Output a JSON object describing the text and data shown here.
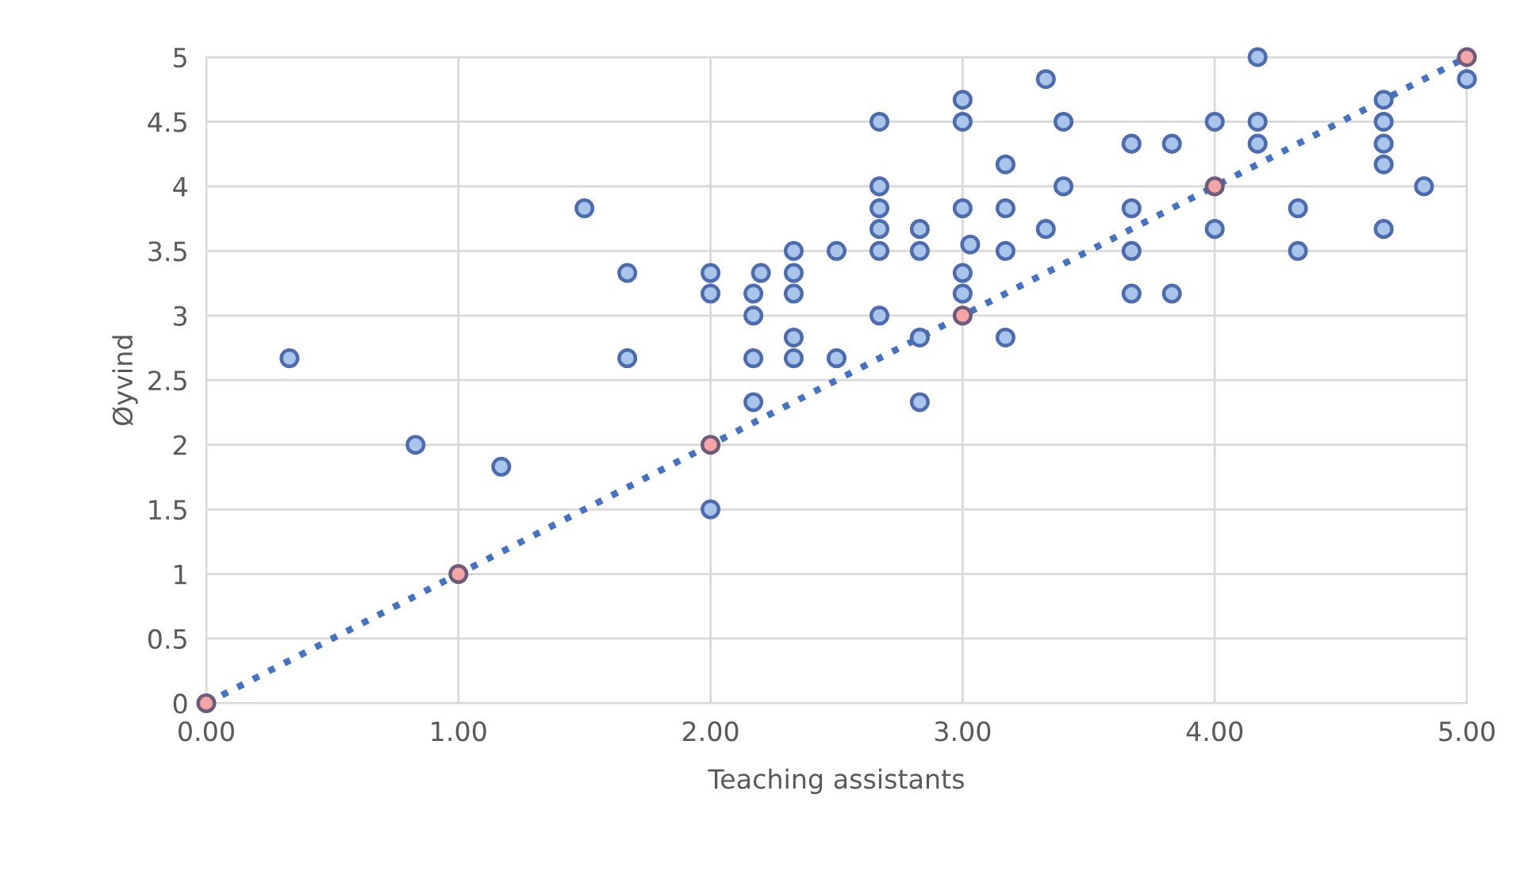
{
  "chart_data": {
    "type": "scatter",
    "xlabel": "Teaching assistants",
    "ylabel": "Øyvind",
    "xlim": [
      0,
      5
    ],
    "ylim": [
      0,
      5
    ],
    "xticks": [
      {
        "value": 0,
        "label": "0.00"
      },
      {
        "value": 1,
        "label": "1.00"
      },
      {
        "value": 2,
        "label": "2.00"
      },
      {
        "value": 3,
        "label": "3.00"
      },
      {
        "value": 4,
        "label": "4.00"
      },
      {
        "value": 5,
        "label": "5.00"
      }
    ],
    "yticks": [
      0,
      0.5,
      1,
      1.5,
      2,
      2.5,
      3,
      3.5,
      4,
      4.5,
      5
    ],
    "grid": true,
    "legend": false,
    "series": [
      {
        "type": "line",
        "color": "#4472c4",
        "line_style": "dotted",
        "marker": "none",
        "x": [
          0,
          5
        ],
        "values": [
          0,
          5
        ]
      },
      {
        "marker": "circle",
        "color": "#a9c6ea",
        "x": [
          0.33,
          0.83,
          1.17,
          1.5,
          1.67,
          1.67,
          2.0,
          2.0,
          2.0,
          2.17,
          2.17,
          2.17,
          2.17,
          2.2,
          2.33,
          2.33,
          2.33,
          2.33,
          2.33,
          2.5,
          2.5,
          2.67,
          2.67,
          2.67,
          2.67,
          2.67,
          2.67,
          2.83,
          2.83,
          2.83,
          2.83,
          3.0,
          3.0,
          3.0,
          3.0,
          3.0,
          3.03,
          3.17,
          3.17,
          3.17,
          3.17,
          3.33,
          3.33,
          3.4,
          3.4,
          3.67,
          3.67,
          3.67,
          3.67,
          3.83,
          3.83,
          4.0,
          4.0,
          4.17,
          4.17,
          4.17,
          4.33,
          4.33,
          4.67,
          4.67,
          4.67,
          4.67,
          4.67,
          4.83,
          5.0
        ],
        "values": [
          2.67,
          2.0,
          1.83,
          3.83,
          3.33,
          2.67,
          3.33,
          3.17,
          1.5,
          3.17,
          3.0,
          2.67,
          2.33,
          3.33,
          3.5,
          3.33,
          3.17,
          2.83,
          2.67,
          2.67,
          3.5,
          4.5,
          4.0,
          3.83,
          3.67,
          3.5,
          3.0,
          3.67,
          3.5,
          2.83,
          2.33,
          4.67,
          4.5,
          3.83,
          3.33,
          3.17,
          3.55,
          4.17,
          3.83,
          3.5,
          2.83,
          4.83,
          3.67,
          4.5,
          4.0,
          4.33,
          3.83,
          3.5,
          3.17,
          4.33,
          3.17,
          4.5,
          3.67,
          5.0,
          4.5,
          4.33,
          3.83,
          3.5,
          4.67,
          4.5,
          4.33,
          4.17,
          3.67,
          4.0,
          4.83
        ]
      },
      {
        "marker": "circle",
        "color": "#f4a6a6",
        "x": [
          0,
          1,
          2,
          3,
          4,
          5
        ],
        "values": [
          0,
          1,
          2,
          3,
          4,
          5
        ]
      }
    ]
  }
}
